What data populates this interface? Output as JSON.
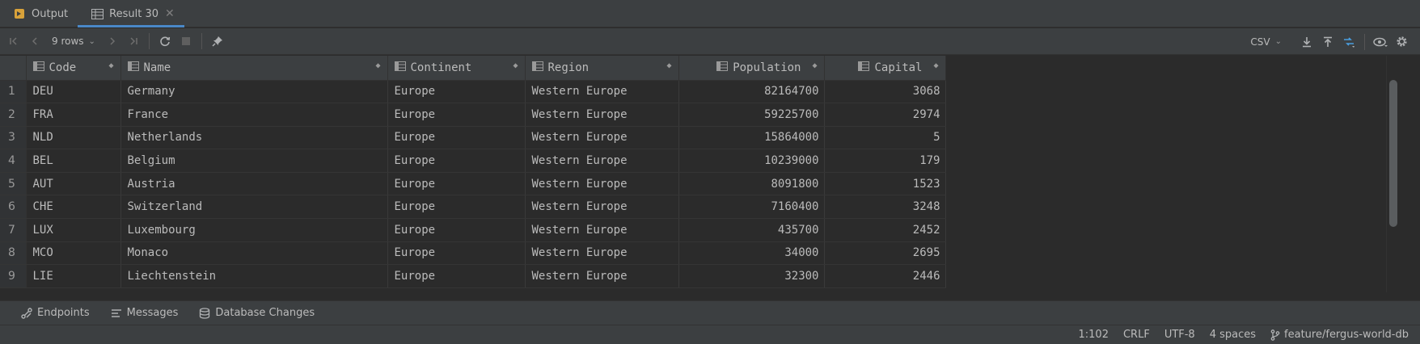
{
  "tabs": [
    {
      "label": "Output",
      "icon": "output-icon"
    },
    {
      "label": "Result 30",
      "icon": "table-icon",
      "active": true
    }
  ],
  "toolbar": {
    "rows_label": "9 rows",
    "export_format": "CSV"
  },
  "table": {
    "columns": [
      {
        "label": "Code"
      },
      {
        "label": "Name"
      },
      {
        "label": "Continent"
      },
      {
        "label": "Region"
      },
      {
        "label": "Population"
      },
      {
        "label": "Capital"
      }
    ],
    "rows": [
      {
        "n": "1",
        "code": "DEU",
        "name": "Germany",
        "continent": "Europe",
        "region": "Western Europe",
        "population": "82164700",
        "capital": "3068"
      },
      {
        "n": "2",
        "code": "FRA",
        "name": "France",
        "continent": "Europe",
        "region": "Western Europe",
        "population": "59225700",
        "capital": "2974"
      },
      {
        "n": "3",
        "code": "NLD",
        "name": "Netherlands",
        "continent": "Europe",
        "region": "Western Europe",
        "population": "15864000",
        "capital": "5"
      },
      {
        "n": "4",
        "code": "BEL",
        "name": "Belgium",
        "continent": "Europe",
        "region": "Western Europe",
        "population": "10239000",
        "capital": "179"
      },
      {
        "n": "5",
        "code": "AUT",
        "name": "Austria",
        "continent": "Europe",
        "region": "Western Europe",
        "population": "8091800",
        "capital": "1523"
      },
      {
        "n": "6",
        "code": "CHE",
        "name": "Switzerland",
        "continent": "Europe",
        "region": "Western Europe",
        "population": "7160400",
        "capital": "3248"
      },
      {
        "n": "7",
        "code": "LUX",
        "name": "Luxembourg",
        "continent": "Europe",
        "region": "Western Europe",
        "population": "435700",
        "capital": "2452"
      },
      {
        "n": "8",
        "code": "MCO",
        "name": "Monaco",
        "continent": "Europe",
        "region": "Western Europe",
        "population": "34000",
        "capital": "2695"
      },
      {
        "n": "9",
        "code": "LIE",
        "name": "Liechtenstein",
        "continent": "Europe",
        "region": "Western Europe",
        "population": "32300",
        "capital": "2446"
      }
    ]
  },
  "toolwindows": [
    {
      "label": "Endpoints",
      "icon": "endpoints-icon"
    },
    {
      "label": "Messages",
      "icon": "messages-icon"
    },
    {
      "label": "Database Changes",
      "icon": "database-changes-icon"
    }
  ],
  "status": {
    "position": "1:102",
    "line_ending": "CRLF",
    "encoding": "UTF-8",
    "indent": "4 spaces",
    "branch": "feature/fergus-world-db"
  },
  "colors": {
    "background": "#2b2b2b",
    "panel": "#3c3f41",
    "accent": "#4a88c7",
    "text": "#bbbbbb"
  }
}
